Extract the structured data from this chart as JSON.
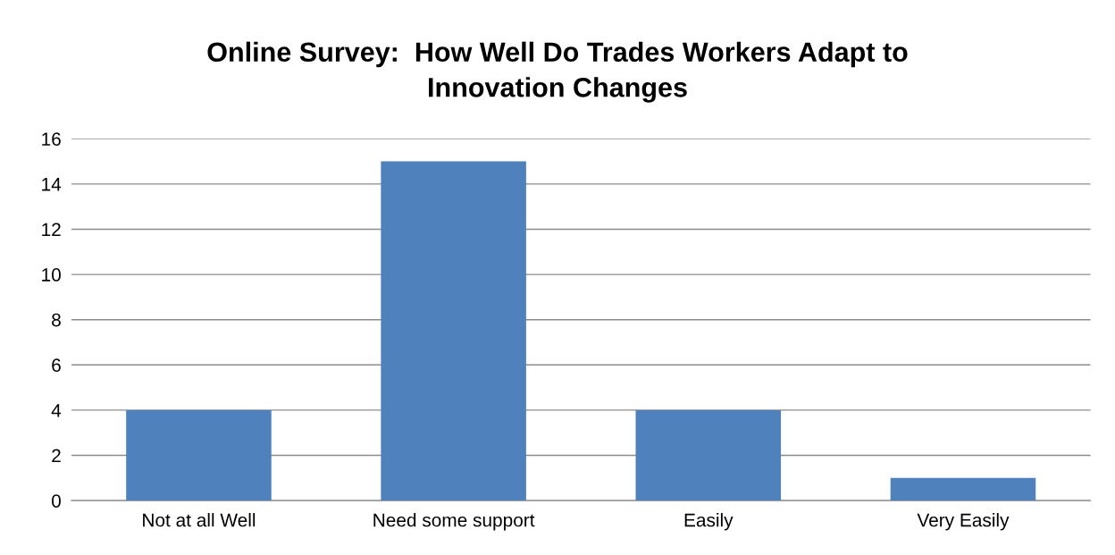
{
  "chart_data": {
    "type": "bar",
    "title": "Online Survey:  How Well Do Trades Workers Adapt to\nInnovation Changes",
    "categories": [
      "Not at all Well",
      "Need some support",
      "Easily",
      "Very Easily"
    ],
    "values": [
      4,
      15,
      4,
      1
    ],
    "color": "#4f81bd",
    "ylim": [
      0,
      16
    ],
    "yticks": [
      0,
      2,
      4,
      6,
      8,
      10,
      12,
      14,
      16
    ],
    "grid": "y",
    "legend": false
  }
}
